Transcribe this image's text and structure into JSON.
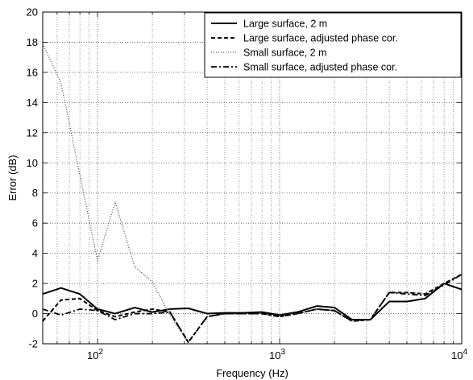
{
  "chart_data": {
    "type": "line",
    "title": "",
    "xlabel": "Frequency (Hz)",
    "ylabel": "Error (dB)",
    "xscale": "log",
    "xlim": [
      50,
      10000
    ],
    "ylim": [
      -2,
      20
    ],
    "grid": true,
    "legend_position": "top-right",
    "x_tick_labels": [
      {
        "value": 100,
        "base": "10",
        "exp": "2"
      },
      {
        "value": 1000,
        "base": "10",
        "exp": "3"
      },
      {
        "value": 10000,
        "base": "10",
        "exp": "4"
      }
    ],
    "y_ticks": [
      -2,
      0,
      2,
      4,
      6,
      8,
      10,
      12,
      14,
      16,
      18,
      20
    ],
    "series": [
      {
        "name": "Large surface, 2 m",
        "style": "solid",
        "x": [
          50,
          63,
          80,
          100,
          125,
          160,
          200,
          250,
          315,
          400,
          500,
          630,
          800,
          1000,
          1250,
          1600,
          2000,
          2500,
          3150,
          4000,
          5000,
          6300,
          8000,
          10000
        ],
        "y": [
          1.3,
          1.7,
          1.3,
          0.3,
          0.0,
          0.4,
          0.1,
          0.3,
          0.35,
          0.0,
          0.05,
          0.05,
          0.1,
          -0.1,
          0.1,
          0.5,
          0.4,
          -0.4,
          -0.4,
          0.8,
          0.8,
          1.0,
          2.0,
          1.6
        ]
      },
      {
        "name": "Large surface, adjusted phase cor.",
        "style": "dashed",
        "x": [
          50,
          63,
          80,
          100,
          125,
          160,
          200,
          250,
          315,
          400,
          500,
          630,
          800,
          1000,
          1250,
          1600,
          2000,
          2500,
          3150,
          4000,
          5000,
          6300,
          8000,
          10000
        ],
        "y": [
          -0.5,
          0.9,
          1.0,
          0.2,
          -0.2,
          0.1,
          0.3,
          0.1,
          -1.9,
          -0.2,
          0.0,
          0.0,
          0.0,
          -0.2,
          0.0,
          0.3,
          0.2,
          -0.5,
          -0.4,
          1.4,
          1.4,
          1.3,
          2.0,
          2.6
        ]
      },
      {
        "name": "Small surface, 2 m",
        "style": "dotted",
        "x": [
          50,
          63,
          80,
          100,
          125,
          160,
          200,
          250,
          315,
          400,
          500,
          630,
          800,
          1000,
          1250,
          1600,
          2000,
          2500,
          3150,
          4000,
          5000,
          6300,
          8000,
          10000
        ],
        "y": [
          17.9,
          15.3,
          9.2,
          3.5,
          7.4,
          3.1,
          2.1,
          -0.1,
          -1.9,
          -0.2,
          0.0,
          0.0,
          0.0,
          -0.2,
          0.0,
          0.3,
          0.2,
          -0.5,
          -0.4,
          1.4,
          1.4,
          1.3,
          2.0,
          2.6
        ]
      },
      {
        "name": "Small surface, adjusted phase cor.",
        "style": "dashdot",
        "x": [
          50,
          63,
          80,
          100,
          125,
          160,
          200,
          250,
          315,
          400,
          500,
          630,
          800,
          1000,
          1250,
          1600,
          2000,
          2500,
          3150,
          4000,
          5000,
          6300,
          8000,
          10000
        ],
        "y": [
          0.3,
          -0.1,
          0.3,
          0.2,
          -0.4,
          0.0,
          0.0,
          0.1,
          -1.9,
          -0.2,
          0.0,
          0.0,
          0.0,
          -0.2,
          0.0,
          0.3,
          0.2,
          -0.5,
          -0.4,
          1.4,
          1.3,
          1.2,
          1.9,
          2.6
        ]
      }
    ]
  }
}
